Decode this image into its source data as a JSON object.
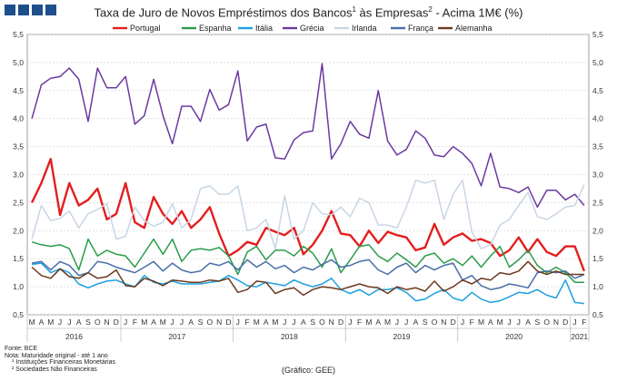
{
  "brand": {
    "logo_squares": 4,
    "logo_color": "#1f4e8c"
  },
  "chart_data": {
    "type": "line",
    "title": "Taxa de Juro de Novos Empréstimos dos Bancos¹ às Empresas² - Acima 1M€ (%)",
    "title_parts": {
      "a": "Taxa de Juro de Novos Empréstimos dos Bancos",
      "sup1": "1",
      "b": " às Empresas",
      "sup2": "2",
      "c": " - Acima 1M€ (%)"
    },
    "ylim": [
      0.5,
      5.5
    ],
    "yticks": [
      "0,5",
      "1,0",
      "1,5",
      "2,0",
      "2,5",
      "3,0",
      "3,5",
      "4,0",
      "4,5",
      "5,0",
      "5,5"
    ],
    "grid": true,
    "legend_position": "top",
    "month_labels": [
      "M",
      "A",
      "M",
      "J",
      "J",
      "A",
      "S",
      "O",
      "N",
      "D",
      "J",
      "F",
      "M",
      "A",
      "M",
      "J",
      "J",
      "A",
      "S",
      "O",
      "N",
      "D",
      "J",
      "F",
      "M",
      "A",
      "M",
      "J",
      "J",
      "A",
      "S",
      "O",
      "N",
      "D",
      "J",
      "F",
      "M",
      "A",
      "M",
      "J",
      "J",
      "A",
      "S",
      "O",
      "N",
      "D",
      "J",
      "F",
      "M",
      "A",
      "M",
      "J",
      "J",
      "A",
      "S",
      "O",
      "N",
      "D",
      "J",
      "F"
    ],
    "years": [
      {
        "label": "2016",
        "start": 0,
        "end": 10
      },
      {
        "label": "2017",
        "start": 10,
        "end": 22
      },
      {
        "label": "2018",
        "start": 22,
        "end": 34
      },
      {
        "label": "2019",
        "start": 34,
        "end": 46
      },
      {
        "label": "2020",
        "start": 46,
        "end": 58
      },
      {
        "label": "2021",
        "start": 58,
        "end": 60
      }
    ],
    "series": [
      {
        "name": "Portugal",
        "color": "#e41e1e",
        "values": [
          2.5,
          2.85,
          3.28,
          2.28,
          2.85,
          2.45,
          2.55,
          2.75,
          2.2,
          2.3,
          2.85,
          2.15,
          2.05,
          2.6,
          2.3,
          2.12,
          2.35,
          2.05,
          2.2,
          2.42,
          1.95,
          1.55,
          1.65,
          1.8,
          1.75,
          2.05,
          1.98,
          1.92,
          2.05,
          1.58,
          1.75,
          2.0,
          2.35,
          1.95,
          1.92,
          1.72,
          2.0,
          1.78,
          1.98,
          1.92,
          1.88,
          1.65,
          1.7,
          2.12,
          1.75,
          1.88,
          1.95,
          1.82,
          1.85,
          1.78,
          1.55,
          1.65,
          1.88,
          1.62,
          1.85,
          1.62,
          1.55,
          1.72,
          1.72,
          1.28
        ]
      },
      {
        "name": "Espanha",
        "color": "#2a9d4a",
        "values": [
          1.8,
          1.75,
          1.72,
          1.75,
          1.68,
          1.3,
          1.85,
          1.55,
          1.65,
          1.58,
          1.55,
          1.35,
          1.6,
          1.85,
          1.58,
          1.85,
          1.45,
          1.65,
          1.68,
          1.65,
          1.7,
          1.55,
          1.22,
          1.62,
          1.72,
          1.48,
          1.65,
          1.65,
          1.55,
          1.72,
          1.6,
          1.35,
          1.68,
          1.25,
          1.48,
          1.72,
          1.75,
          1.55,
          1.45,
          1.6,
          1.48,
          1.35,
          1.55,
          1.6,
          1.42,
          1.5,
          1.38,
          1.55,
          1.35,
          1.55,
          1.72,
          1.35,
          1.48,
          1.65,
          1.38,
          1.25,
          1.35,
          1.25,
          1.08,
          1.08
        ]
      },
      {
        "name": "Itália",
        "color": "#1ea0e0",
        "values": [
          1.4,
          1.42,
          1.25,
          1.32,
          1.25,
          1.05,
          0.98,
          1.05,
          1.1,
          1.12,
          1.05,
          1.0,
          1.2,
          1.08,
          1.05,
          1.1,
          1.05,
          1.05,
          1.05,
          1.08,
          1.1,
          1.2,
          1.12,
          1.02,
          1.0,
          1.08,
          1.05,
          1.02,
          1.12,
          1.05,
          1.0,
          1.05,
          1.15,
          0.95,
          0.88,
          0.95,
          0.85,
          0.95,
          0.95,
          0.98,
          0.9,
          0.75,
          0.78,
          0.88,
          0.95,
          0.8,
          0.75,
          0.9,
          0.78,
          0.72,
          0.75,
          0.82,
          0.9,
          0.88,
          0.95,
          0.85,
          0.8,
          1.12,
          0.72,
          0.7
        ]
      },
      {
        "name": "Grécia",
        "color": "#6a3aa0",
        "values": [
          4.0,
          4.6,
          4.72,
          4.75,
          4.9,
          4.7,
          3.95,
          4.9,
          4.55,
          4.55,
          4.75,
          3.9,
          4.05,
          4.7,
          4.05,
          3.55,
          4.22,
          4.22,
          3.95,
          4.52,
          4.15,
          4.25,
          4.85,
          3.6,
          3.85,
          3.9,
          3.3,
          3.28,
          3.62,
          3.75,
          3.78,
          4.98,
          3.28,
          3.55,
          3.95,
          3.72,
          3.65,
          4.5,
          3.6,
          3.35,
          3.45,
          3.78,
          3.65,
          3.35,
          3.32,
          3.5,
          3.38,
          3.2,
          2.8,
          3.38,
          2.78,
          2.75,
          2.68,
          2.78,
          2.42,
          2.72,
          2.72,
          2.55,
          2.65,
          2.45
        ]
      },
      {
        "name": "Irlanda",
        "color": "#c8d6e5",
        "values": [
          1.85,
          2.45,
          2.18,
          2.22,
          2.35,
          2.05,
          2.3,
          2.38,
          2.48,
          1.85,
          1.9,
          2.42,
          2.18,
          2.08,
          2.15,
          2.48,
          2.05,
          2.2,
          2.75,
          2.8,
          2.65,
          2.65,
          2.8,
          2.0,
          2.05,
          2.2,
          1.68,
          2.62,
          1.85,
          2.0,
          2.5,
          2.3,
          2.28,
          2.42,
          2.25,
          2.58,
          2.5,
          2.1,
          2.1,
          2.05,
          2.42,
          2.9,
          2.85,
          2.9,
          2.2,
          2.65,
          2.9,
          1.98,
          1.68,
          1.75,
          2.1,
          2.2,
          2.45,
          2.68,
          2.25,
          2.2,
          2.3,
          2.42,
          2.45,
          2.82
        ]
      },
      {
        "name": "França",
        "color": "#4a6fa8",
        "values": [
          1.42,
          1.45,
          1.3,
          1.45,
          1.38,
          1.2,
          1.25,
          1.45,
          1.42,
          1.35,
          1.3,
          1.25,
          1.35,
          1.45,
          1.28,
          1.42,
          1.3,
          1.25,
          1.28,
          1.42,
          1.38,
          1.45,
          1.3,
          1.48,
          1.35,
          1.45,
          1.32,
          1.38,
          1.25,
          1.35,
          1.3,
          1.4,
          1.48,
          1.35,
          1.38,
          1.45,
          1.48,
          1.3,
          1.22,
          1.35,
          1.42,
          1.25,
          1.38,
          1.3,
          1.38,
          1.42,
          1.12,
          1.2,
          1.02,
          0.95,
          0.98,
          1.05,
          1.02,
          0.98,
          1.25,
          1.28,
          1.25,
          1.28,
          1.15,
          1.22
        ]
      },
      {
        "name": "Alemanha",
        "color": "#6b3a1e",
        "values": [
          1.35,
          1.2,
          1.15,
          1.32,
          1.18,
          1.15,
          1.25,
          1.15,
          1.18,
          1.3,
          1.02,
          1.0,
          1.15,
          1.1,
          1.02,
          1.12,
          1.1,
          1.08,
          1.08,
          1.12,
          1.1,
          1.15,
          0.9,
          0.95,
          1.1,
          1.08,
          0.88,
          0.95,
          0.98,
          0.85,
          0.95,
          1.0,
          0.98,
          0.95,
          1.0,
          1.05,
          1.0,
          0.98,
          0.88,
          1.0,
          0.95,
          0.98,
          0.92,
          1.1,
          0.92,
          1.0,
          1.12,
          1.05,
          1.15,
          1.12,
          1.25,
          1.22,
          1.28,
          1.45,
          1.28,
          1.22,
          1.28,
          1.22,
          1.22,
          1.22
        ]
      }
    ]
  },
  "footnotes": {
    "source": "Fonte: BCE",
    "note": "Nota: Maturidade original - até 1 ano",
    "fn1": "¹ Instituições Financeiras Monetárias",
    "fn2": "² Sociedades Não Financeiras"
  },
  "credit": "(Gráfico: GEE)"
}
